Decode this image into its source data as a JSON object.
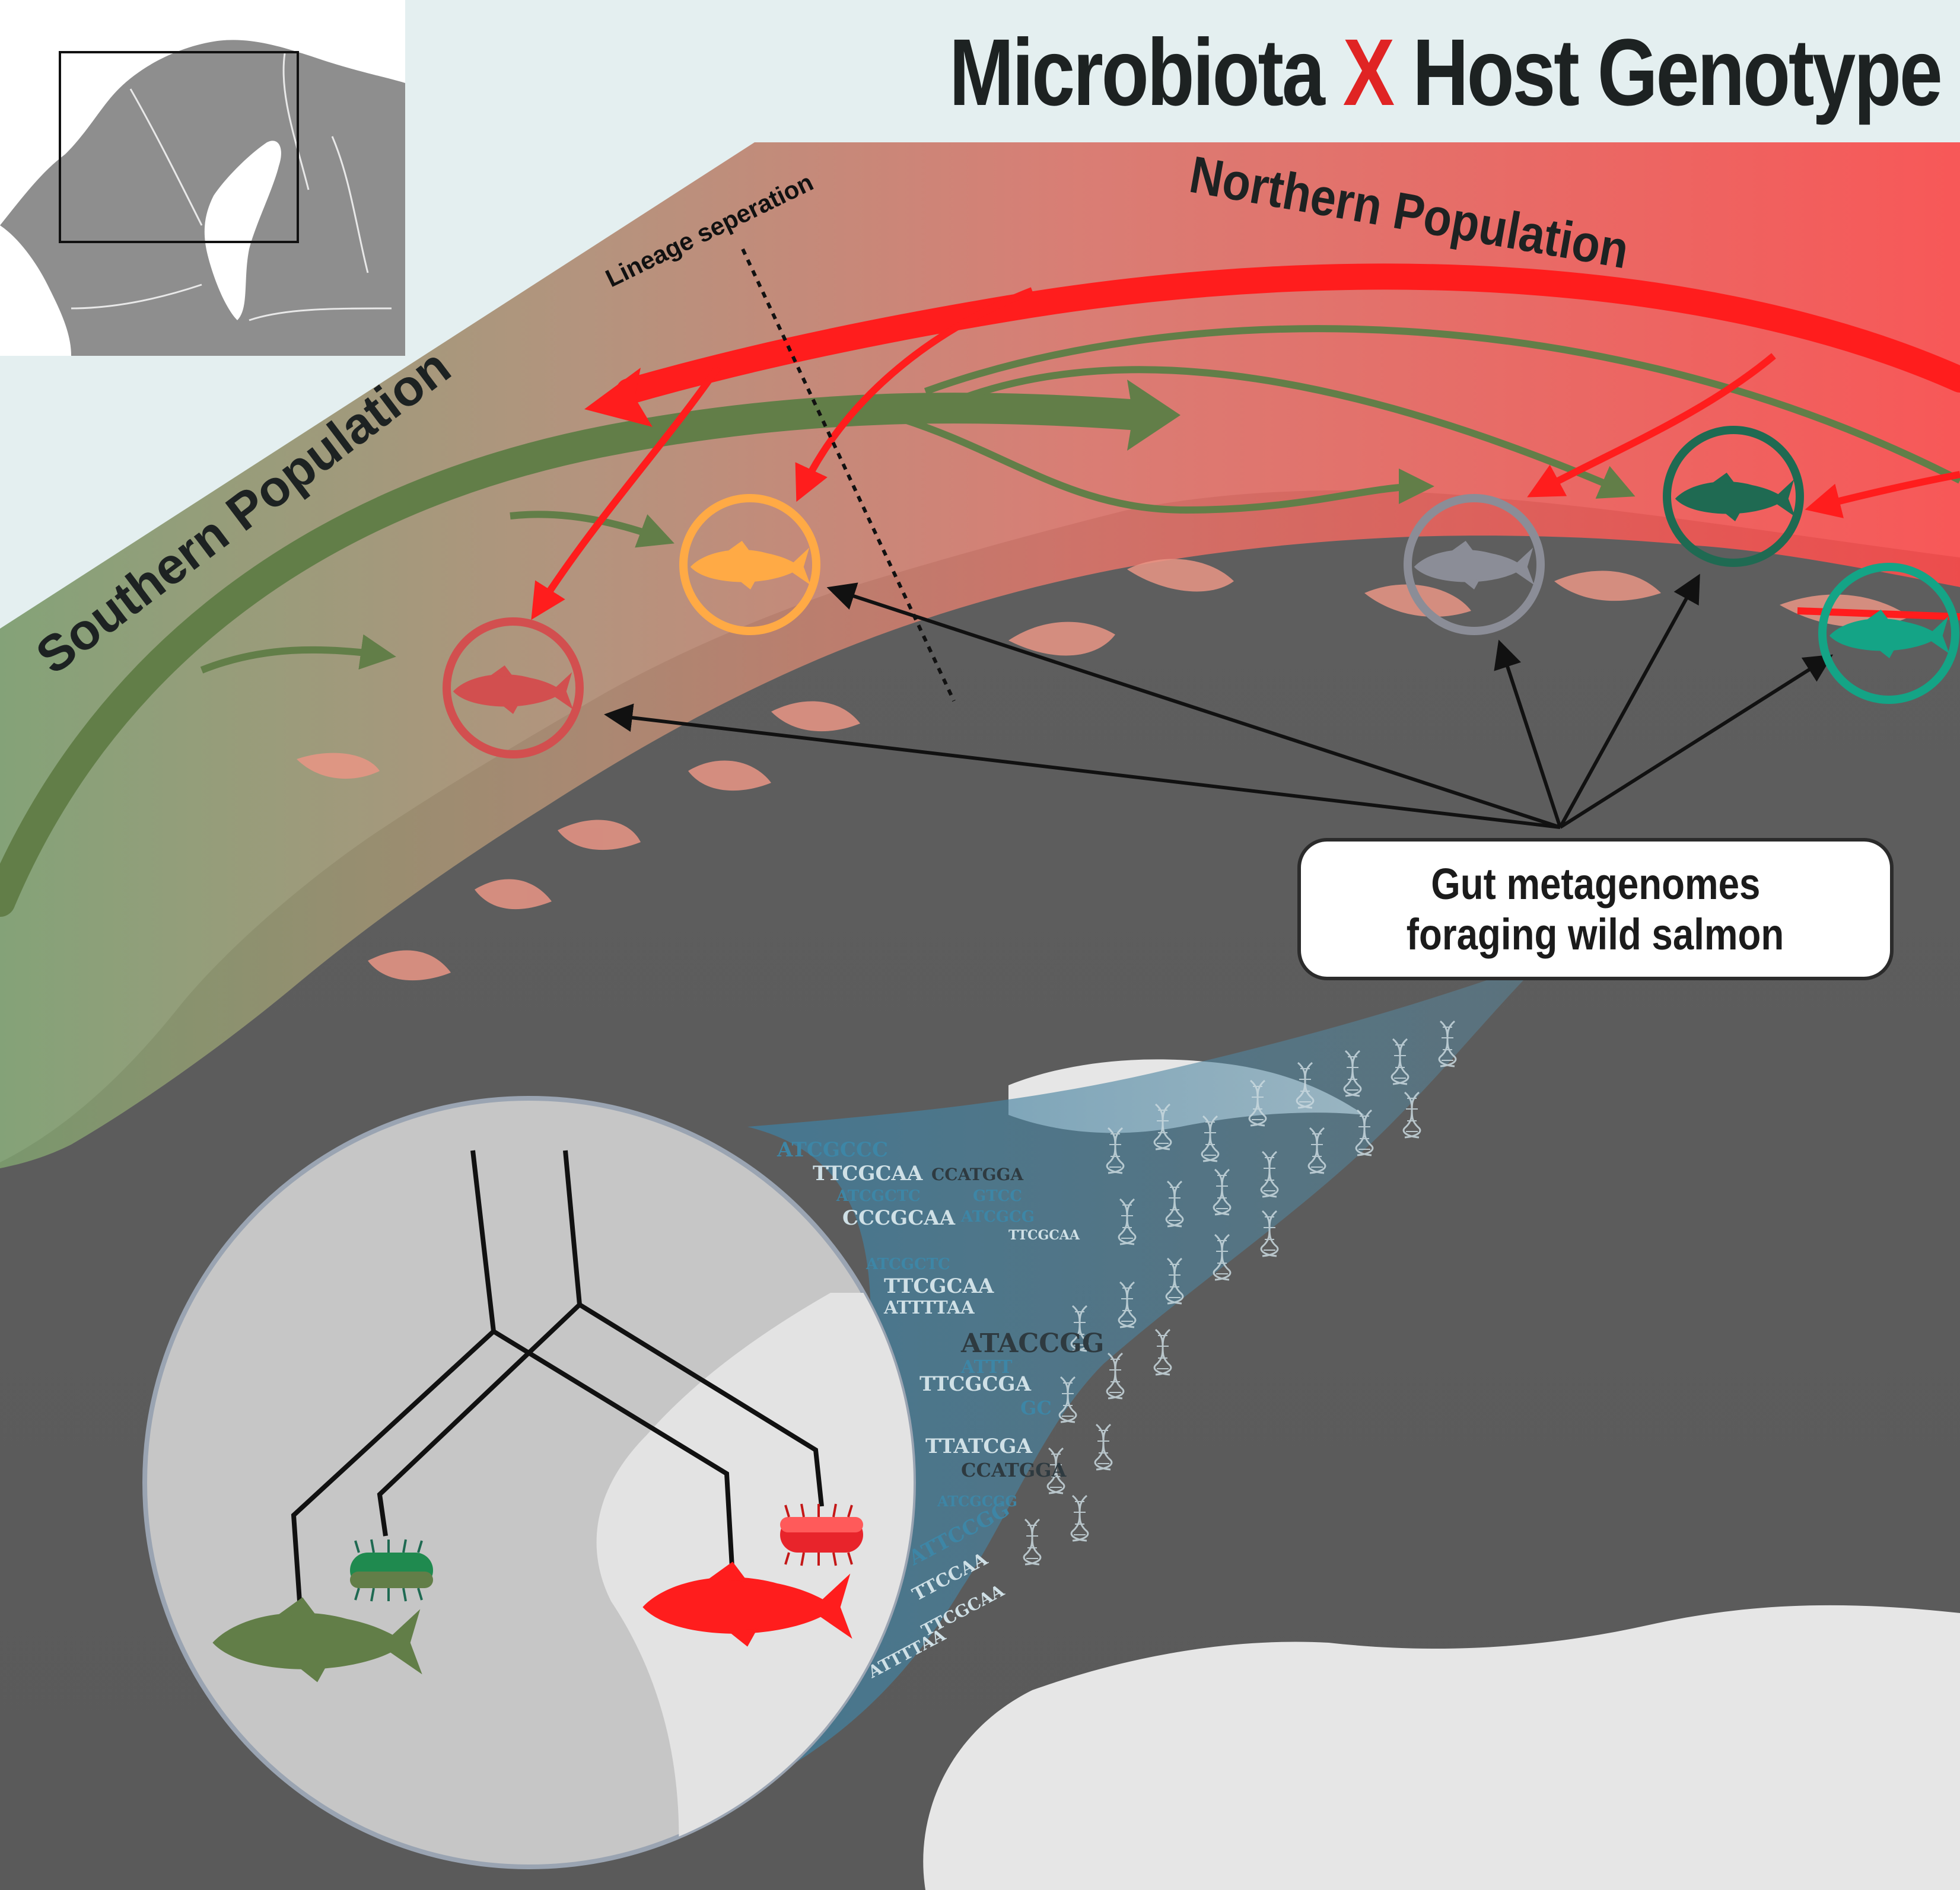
{
  "title": {
    "part1": "Microbiota",
    "connector": "X",
    "part2": "Host Genotype"
  },
  "labels": {
    "northern_population": "Northern Population",
    "southern_population": "Southern Population",
    "lineage_separation": "Lineage seperation"
  },
  "callout": {
    "line1": "Gut metagenomes",
    "line2": "foraging wild salmon"
  },
  "sequences": [
    "ATCGCCC",
    "TTCGCAA",
    "CCATGGA",
    "ATCGCTC",
    "GTCC",
    "CCCGCAA",
    "ATCGCG",
    "TTCGCAA",
    "ATCGCTC",
    "TTCGCAA",
    "ATTTTAA",
    "ATACCGG",
    "ATTT",
    "TTCGCGA",
    "GC",
    "TTATCGA",
    "CCATGGA",
    "ATCGCGG",
    "ATTCCGG",
    "TTCCAA",
    "TTCGCAA",
    "ATTTTAA"
  ],
  "icons": {
    "fish": "salmon-silhouette",
    "bacterium": "rod-bacterium",
    "dna": "double-helix",
    "map": "scandinavia-inset"
  },
  "colors": {
    "north": "#ff1d1d",
    "south": "#627e48",
    "site_red_dark": "#d24f4f",
    "site_orange": "#ffaa45",
    "site_grey": "#8b8d97",
    "site_green_dark": "#1f6a52",
    "site_teal": "#14a486",
    "land": "#5e5e5e",
    "sea": "#e4eff0",
    "ribbon": "#3f86a8"
  }
}
